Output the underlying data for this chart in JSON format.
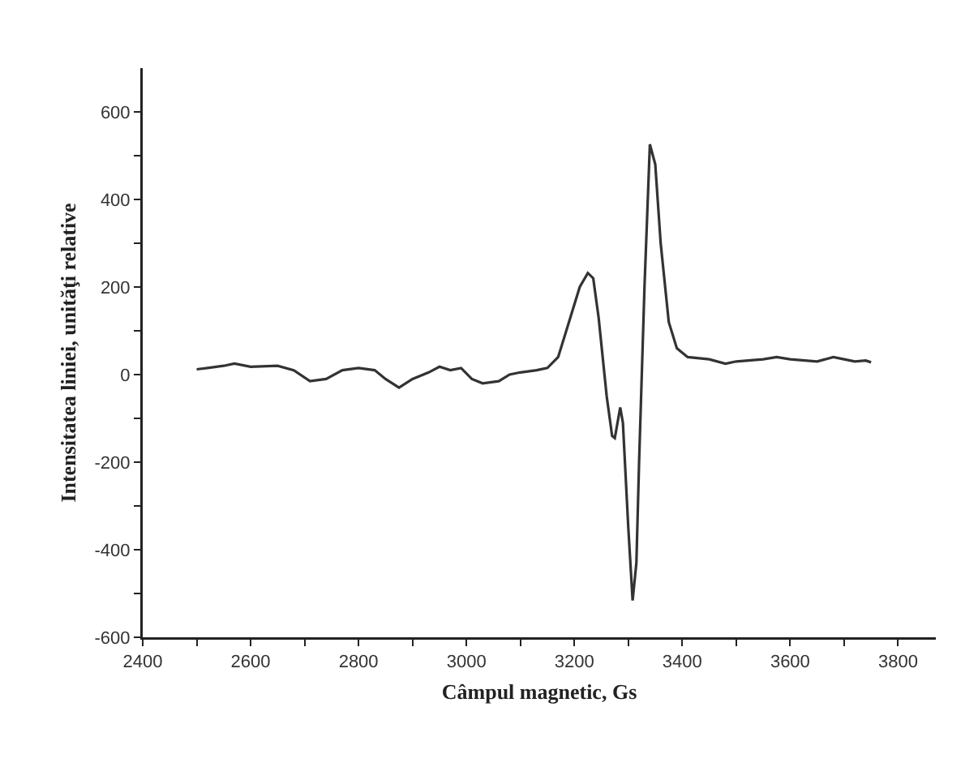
{
  "chart_data": {
    "type": "line",
    "xlabel": "Câmpul magnetic, Gs",
    "ylabel": "Intensitatea liniei, unităţi relative",
    "xlim": [
      2400,
      3870
    ],
    "ylim": [
      -600,
      700
    ],
    "xticks": [
      2400,
      {
        "value": 2500,
        "label": null
      },
      2600,
      {
        "value": 2700,
        "label": null
      },
      2800,
      {
        "value": 2900,
        "label": null
      },
      3000,
      {
        "value": 3100,
        "label": null
      },
      3200,
      {
        "value": 3300,
        "label": null
      },
      3400,
      {
        "value": 3500,
        "label": null
      },
      3600,
      {
        "value": 3700,
        "label": null
      },
      3800
    ],
    "yticks": [
      -600,
      {
        "value": -500,
        "label": null
      },
      -400,
      {
        "value": -300,
        "label": null
      },
      -200,
      {
        "value": -100,
        "label": null
      },
      0,
      {
        "value": 100,
        "label": null
      },
      200,
      {
        "value": 300,
        "label": null
      },
      400,
      {
        "value": 500,
        "label": null
      },
      600
    ],
    "marker": "none",
    "line_style": "solid",
    "series": [
      {
        "color": "#333333",
        "x": [
          2500,
          2550,
          2570,
          2600,
          2650,
          2680,
          2710,
          2740,
          2770,
          2800,
          2830,
          2850,
          2875,
          2900,
          2930,
          2950,
          2970,
          2990,
          3010,
          3030,
          3060,
          3080,
          3100,
          3130,
          3150,
          3170,
          3190,
          3210,
          3225,
          3235,
          3245,
          3260,
          3270,
          3275,
          3285,
          3290,
          3300,
          3308,
          3315,
          3320,
          3330,
          3340,
          3350,
          3360,
          3375,
          3390,
          3410,
          3450,
          3480,
          3500,
          3550,
          3575,
          3600,
          3650,
          3680,
          3700,
          3720,
          3740,
          3750
        ],
        "values": [
          12,
          20,
          25,
          18,
          20,
          10,
          -15,
          -10,
          10,
          15,
          10,
          -10,
          -30,
          -10,
          5,
          18,
          10,
          15,
          -10,
          -20,
          -15,
          0,
          5,
          10,
          15,
          40,
          120,
          200,
          232,
          220,
          130,
          -50,
          -140,
          -145,
          -75,
          -110,
          -350,
          -516,
          -430,
          -200,
          200,
          526,
          480,
          300,
          120,
          60,
          40,
          35,
          25,
          30,
          35,
          40,
          35,
          30,
          40,
          35,
          30,
          32,
          28
        ]
      }
    ]
  }
}
